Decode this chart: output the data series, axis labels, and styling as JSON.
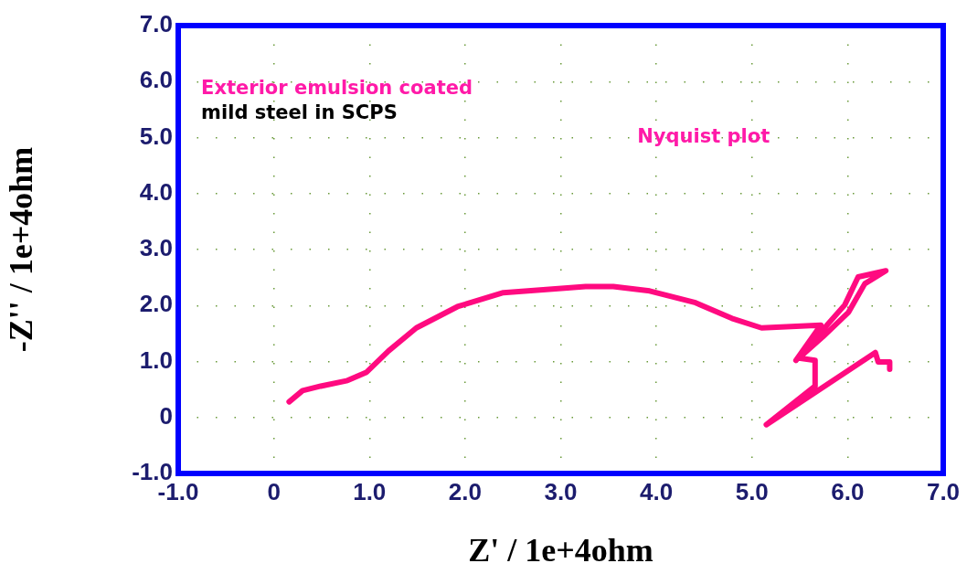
{
  "chart_data": {
    "type": "line",
    "xlabel": "Z' / 1e+4ohm",
    "ylabel": "-Z'' / 1e+4ohm",
    "annotations": [
      "Exterior emulsion coated",
      "mild steel in SCPS",
      "Nyquist plot"
    ],
    "xlim": [
      -1,
      7
    ],
    "ylim": [
      -1,
      7
    ],
    "xticks": [
      {
        "value": -1,
        "label": "-1.0"
      },
      {
        "value": 0,
        "label": "0"
      },
      {
        "value": 1,
        "label": "1.0"
      },
      {
        "value": 2,
        "label": "2.0"
      },
      {
        "value": 3,
        "label": "3.0"
      },
      {
        "value": 4,
        "label": "4.0"
      },
      {
        "value": 5,
        "label": "5.0"
      },
      {
        "value": 6,
        "label": "6.0"
      },
      {
        "value": 7,
        "label": "7.0"
      }
    ],
    "yticks": [
      {
        "value": -1,
        "label": "-1.0"
      },
      {
        "value": 0,
        "label": "0"
      },
      {
        "value": 1,
        "label": "1.0"
      },
      {
        "value": 2,
        "label": "2.0"
      },
      {
        "value": 3,
        "label": "3.0"
      },
      {
        "value": 4,
        "label": "4.0"
      },
      {
        "value": 5,
        "label": "5.0"
      },
      {
        "value": 6,
        "label": "6.0"
      },
      {
        "value": 7,
        "label": "7.0"
      }
    ],
    "grid": true,
    "legend": false,
    "marker": "none",
    "line_style": "solid",
    "series": [
      {
        "color": "#ff0a80",
        "x": [
          0.16,
          0.3,
          0.49,
          0.77,
          0.97,
          1.2,
          1.49,
          1.92,
          2.4,
          2.88,
          3.26,
          3.55,
          3.93,
          4.41,
          4.79,
          5.1,
          5.72,
          5.46,
          5.97,
          6.11,
          6.4,
          6.18,
          6.01,
          5.74,
          5.49,
          5.66,
          5.66,
          5.15,
          6.29,
          6.32,
          6.44,
          6.44
        ],
        "values": [
          0.28,
          0.48,
          0.56,
          0.66,
          0.81,
          1.19,
          1.6,
          1.98,
          2.23,
          2.29,
          2.34,
          2.34,
          2.26,
          2.05,
          1.77,
          1.6,
          1.65,
          1.02,
          2.01,
          2.51,
          2.62,
          2.39,
          1.88,
          1.44,
          1.06,
          1.02,
          0.56,
          -0.13,
          1.16,
          0.99,
          0.99,
          0.86
        ]
      }
    ]
  }
}
